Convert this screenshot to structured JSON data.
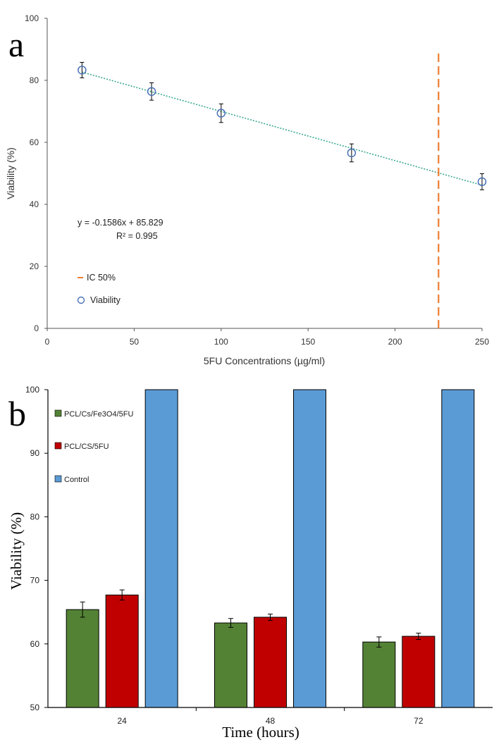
{
  "chart_data": [
    {
      "panel_label": "a",
      "type": "scatter",
      "title": "",
      "xlabel": "5FU Concentrations (µg/ml)",
      "ylabel": "Viability (%)",
      "xlim": [
        0,
        250
      ],
      "ylim": [
        0,
        100
      ],
      "x_ticks": [
        "0",
        "50",
        "100",
        "150",
        "200",
        "250"
      ],
      "y_ticks": [
        "0",
        "20",
        "40",
        "60",
        "80",
        "100"
      ],
      "grid": false,
      "series": [
        {
          "name": "Viability",
          "marker": "open-circle",
          "color": "#4a72b8",
          "x": [
            20,
            60,
            100,
            175,
            250
          ],
          "y": [
            83.3,
            76.4,
            69.4,
            56.6,
            47.3
          ],
          "error": [
            2.5,
            2.8,
            3.0,
            2.9,
            2.6
          ]
        }
      ],
      "trendline": {
        "slope": -0.1586,
        "intercept": 85.829,
        "x_range": [
          20,
          250
        ],
        "color": "#3aa890",
        "equation_text": "y = -0.1586x + 85.829",
        "r2_text": "R² = 0.995"
      },
      "ic50_line": {
        "name": "IC 50%",
        "x": 225,
        "y_range": [
          0,
          90
        ],
        "color": "#ed7d31"
      },
      "legend": {
        "position": "bottom-left",
        "entries": [
          {
            "label": "IC 50%",
            "symbol": "dash",
            "color": "#ed7d31"
          },
          {
            "label": "Viability",
            "symbol": "open-circle",
            "color": "#4a72b8"
          }
        ]
      }
    },
    {
      "panel_label": "b",
      "type": "bar",
      "title": "",
      "xlabel": "Time (hours)",
      "ylabel": "Viability (%)",
      "ylim": [
        50,
        100
      ],
      "y_ticks": [
        "50",
        "60",
        "70",
        "80",
        "90",
        "100"
      ],
      "categories": [
        "24",
        "48",
        "72"
      ],
      "grid": false,
      "series": [
        {
          "name": "PCL/Cs/Fe3O4/5FU",
          "color": "#548235",
          "values": [
            65.4,
            63.3,
            60.3
          ],
          "error": [
            1.2,
            0.7,
            0.8
          ]
        },
        {
          "name": "PCL/CS/5FU",
          "color": "#c00000",
          "values": [
            67.7,
            64.2,
            61.2
          ],
          "error": [
            0.8,
            0.5,
            0.5
          ]
        },
        {
          "name": "Control",
          "color": "#5b9bd5",
          "values": [
            100,
            100,
            100
          ],
          "error": [
            0,
            0,
            0
          ]
        }
      ],
      "legend": {
        "position": "top-left"
      }
    }
  ]
}
